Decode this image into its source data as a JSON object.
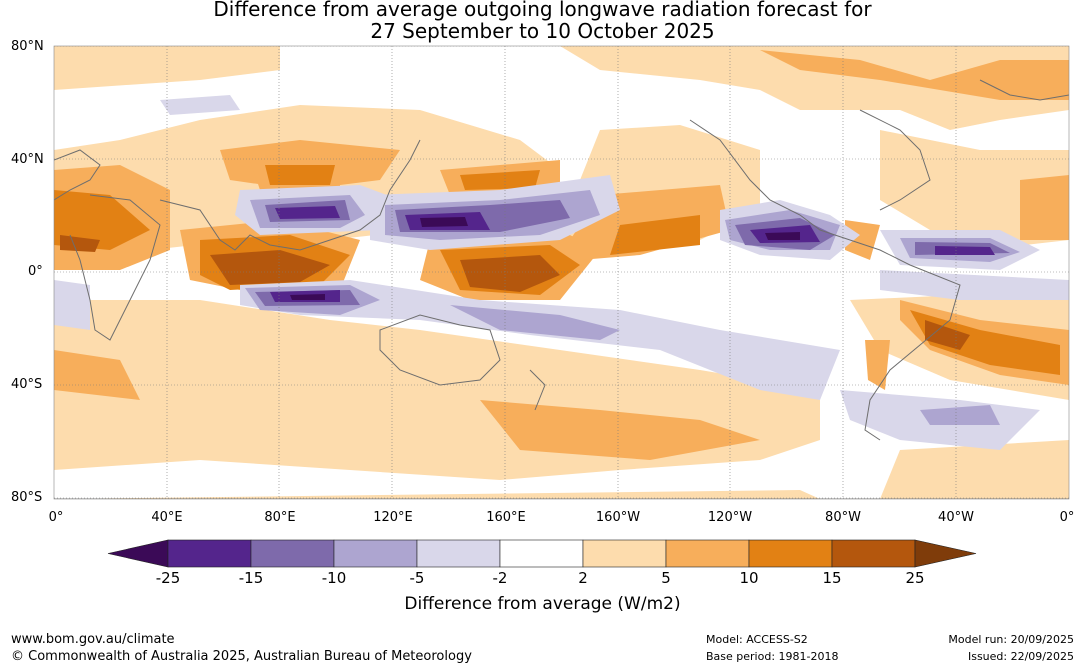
{
  "title": {
    "line1": "Difference from average outgoing longwave radiation forecast for",
    "line2": "27 September to 10 October 2025"
  },
  "map": {
    "lat_labels": [
      "80°N",
      "40°N",
      "0°",
      "40°S",
      "80°S"
    ],
    "lon_labels": [
      "0°",
      "40°E",
      "80°E",
      "120°E",
      "160°E",
      "160°W",
      "120°W",
      "80°W",
      "40°W",
      "0°"
    ]
  },
  "colorbar": {
    "ticks": [
      "-25",
      "-15",
      "-10",
      "-5",
      "-2",
      "2",
      "5",
      "10",
      "15",
      "25"
    ],
    "colors": [
      "#3b0a57",
      "#54258c",
      "#7e6aab",
      "#ada5d0",
      "#d9d7ea",
      "#ffffff",
      "#fddcad",
      "#f7ae5b",
      "#e28114",
      "#b4570d",
      "#7f3c0a"
    ],
    "label": "Difference from average (W/m2)"
  },
  "footer": {
    "website": "www.bom.gov.au/climate",
    "copyright": "© Commonwealth of Australia 2025, Australian Bureau of Meteorology",
    "model": "Model: ACCESS-S2",
    "base_period": "Base period: 1981-2018",
    "model_run": "Model run: 20/09/2025",
    "issued": "Issued: 22/09/2025"
  }
}
